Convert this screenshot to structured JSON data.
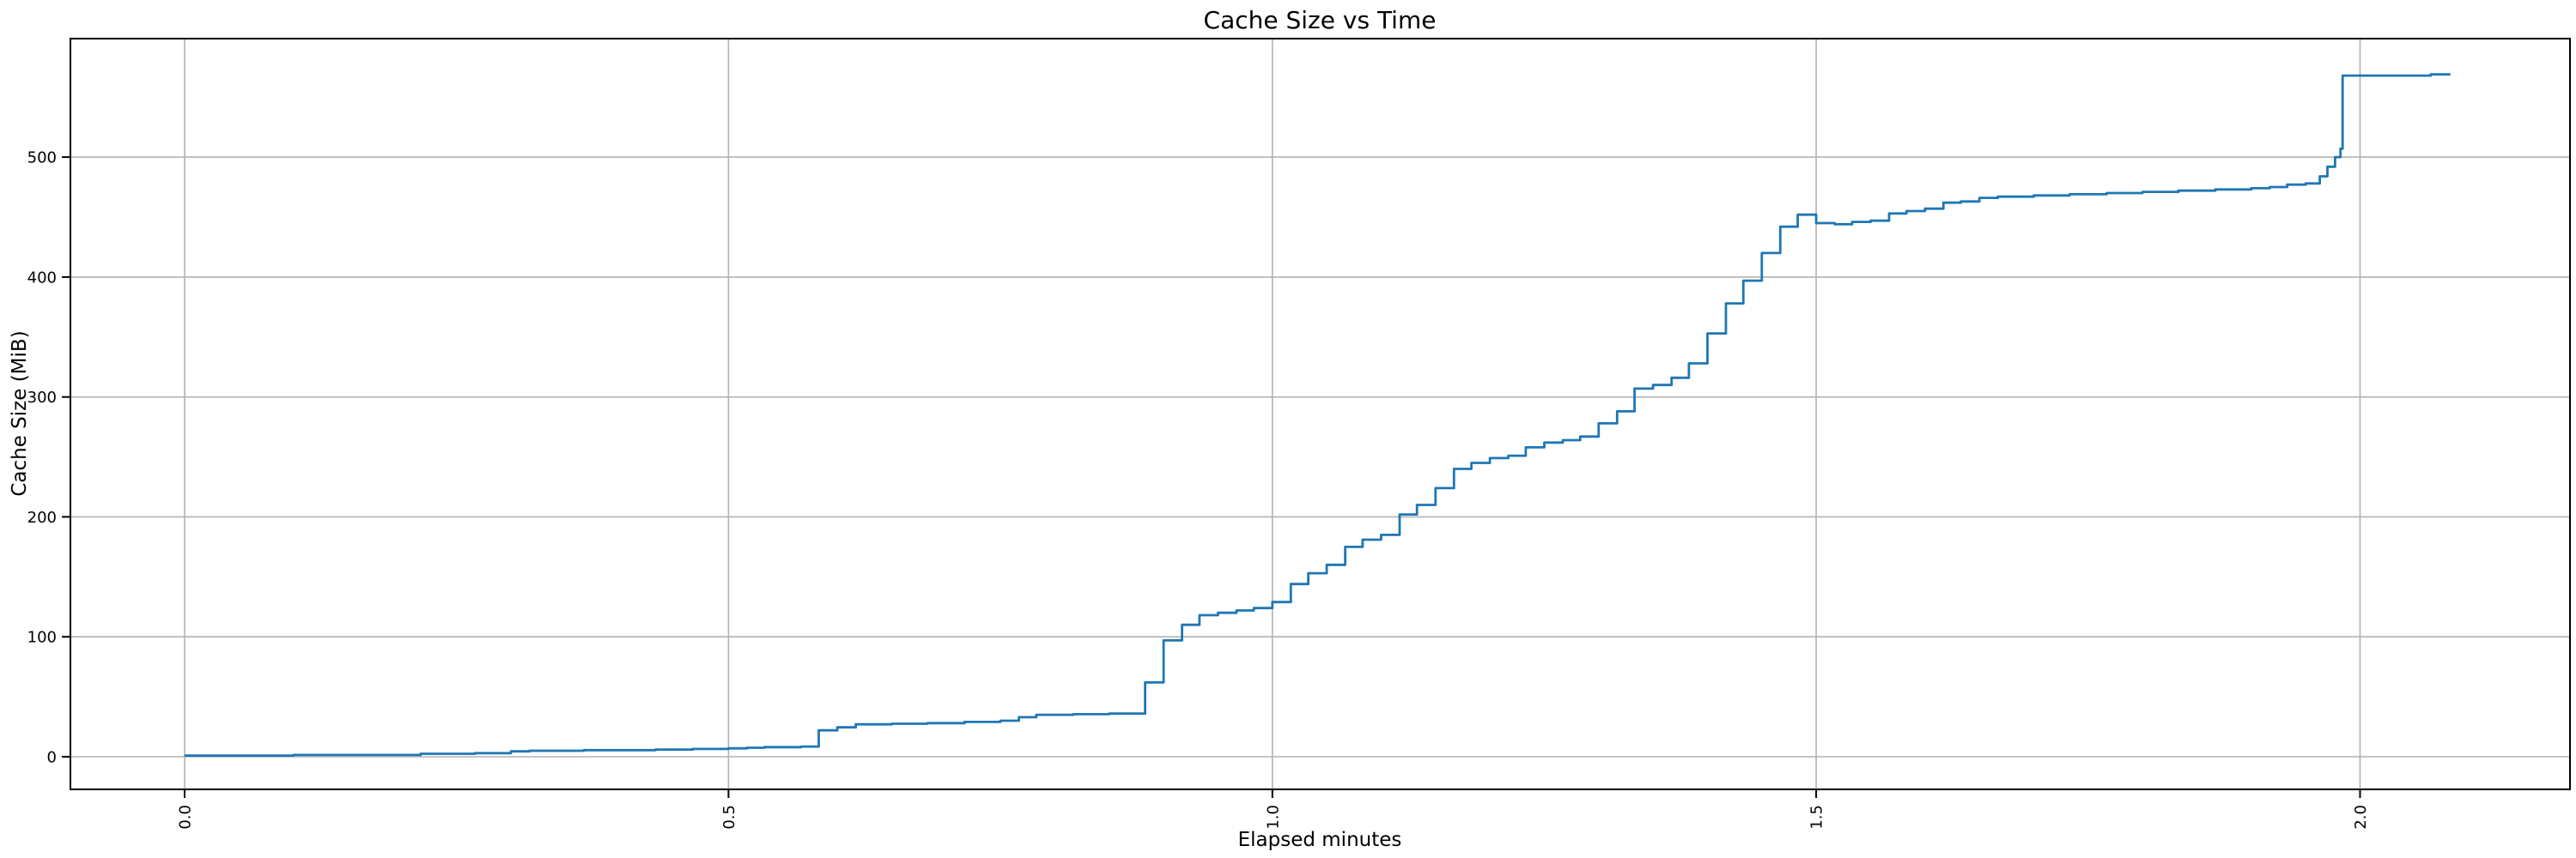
{
  "figure": {
    "background": "#ffffff"
  },
  "chart_data": {
    "type": "line",
    "style": "step-post",
    "title": "Cache Size vs Time",
    "xlabel": "Elapsed minutes",
    "ylabel": "Cache Size (MiB)",
    "line_color": "#1f77b4",
    "grid_color": "#b2b2b2",
    "spine_color": "#000000",
    "grid": true,
    "legend": "none",
    "x_unit": "minutes",
    "y_unit": "MiB",
    "xlim": [
      -0.105,
      2.193
    ],
    "ylim": [
      -27.2,
      598.8
    ],
    "xticks": {
      "values": [
        0.0,
        0.5,
        1.0,
        1.5,
        2.0
      ],
      "labels": [
        "0.0",
        "0.5",
        "1.0",
        "1.5",
        "2.0"
      ],
      "rotation": 90
    },
    "yticks": {
      "values": [
        0,
        100,
        200,
        300,
        400,
        500
      ],
      "labels": [
        "0",
        "100",
        "200",
        "300",
        "400",
        "500"
      ]
    },
    "points": [
      [
        0.0,
        1
      ],
      [
        0.1,
        1.5
      ],
      [
        0.217,
        2.5
      ],
      [
        0.267,
        3
      ],
      [
        0.3,
        4.5
      ],
      [
        0.317,
        5
      ],
      [
        0.367,
        5.5
      ],
      [
        0.433,
        6
      ],
      [
        0.467,
        6.5
      ],
      [
        0.5,
        7
      ],
      [
        0.517,
        7.5
      ],
      [
        0.533,
        8
      ],
      [
        0.567,
        8.5
      ],
      [
        0.583,
        22
      ],
      [
        0.6,
        24.5
      ],
      [
        0.617,
        27
      ],
      [
        0.65,
        27.5
      ],
      [
        0.683,
        28
      ],
      [
        0.717,
        29
      ],
      [
        0.75,
        30
      ],
      [
        0.767,
        33
      ],
      [
        0.783,
        35
      ],
      [
        0.817,
        35.5
      ],
      [
        0.85,
        36
      ],
      [
        0.883,
        62
      ],
      [
        0.9,
        97
      ],
      [
        0.917,
        110
      ],
      [
        0.933,
        118
      ],
      [
        0.95,
        120
      ],
      [
        0.967,
        122
      ],
      [
        0.983,
        124
      ],
      [
        1.0,
        129
      ],
      [
        1.017,
        144
      ],
      [
        1.033,
        153
      ],
      [
        1.05,
        160
      ],
      [
        1.067,
        175
      ],
      [
        1.083,
        181
      ],
      [
        1.1,
        185
      ],
      [
        1.117,
        202
      ],
      [
        1.133,
        210
      ],
      [
        1.15,
        224
      ],
      [
        1.167,
        240
      ],
      [
        1.183,
        245
      ],
      [
        1.2,
        249
      ],
      [
        1.217,
        251
      ],
      [
        1.233,
        258
      ],
      [
        1.25,
        262
      ],
      [
        1.267,
        264
      ],
      [
        1.283,
        267
      ],
      [
        1.3,
        278
      ],
      [
        1.317,
        288
      ],
      [
        1.333,
        307
      ],
      [
        1.35,
        310
      ],
      [
        1.367,
        316
      ],
      [
        1.383,
        328
      ],
      [
        1.4,
        353
      ],
      [
        1.417,
        378
      ],
      [
        1.433,
        397
      ],
      [
        1.45,
        420
      ],
      [
        1.467,
        442
      ],
      [
        1.483,
        452
      ],
      [
        1.5,
        445
      ],
      [
        1.517,
        444
      ],
      [
        1.533,
        446
      ],
      [
        1.55,
        447
      ],
      [
        1.567,
        453
      ],
      [
        1.583,
        455
      ],
      [
        1.6,
        457
      ],
      [
        1.617,
        462
      ],
      [
        1.633,
        463
      ],
      [
        1.65,
        466
      ],
      [
        1.667,
        467
      ],
      [
        1.7,
        468
      ],
      [
        1.733,
        469
      ],
      [
        1.767,
        470
      ],
      [
        1.8,
        471
      ],
      [
        1.833,
        472
      ],
      [
        1.867,
        473
      ],
      [
        1.9,
        474
      ],
      [
        1.917,
        475
      ],
      [
        1.933,
        477
      ],
      [
        1.95,
        478
      ],
      [
        1.963,
        484
      ],
      [
        1.97,
        492
      ],
      [
        1.977,
        500
      ],
      [
        1.982,
        507
      ],
      [
        1.984,
        568
      ],
      [
        2.05,
        568
      ],
      [
        2.065,
        569
      ],
      [
        2.083,
        569
      ]
    ]
  }
}
